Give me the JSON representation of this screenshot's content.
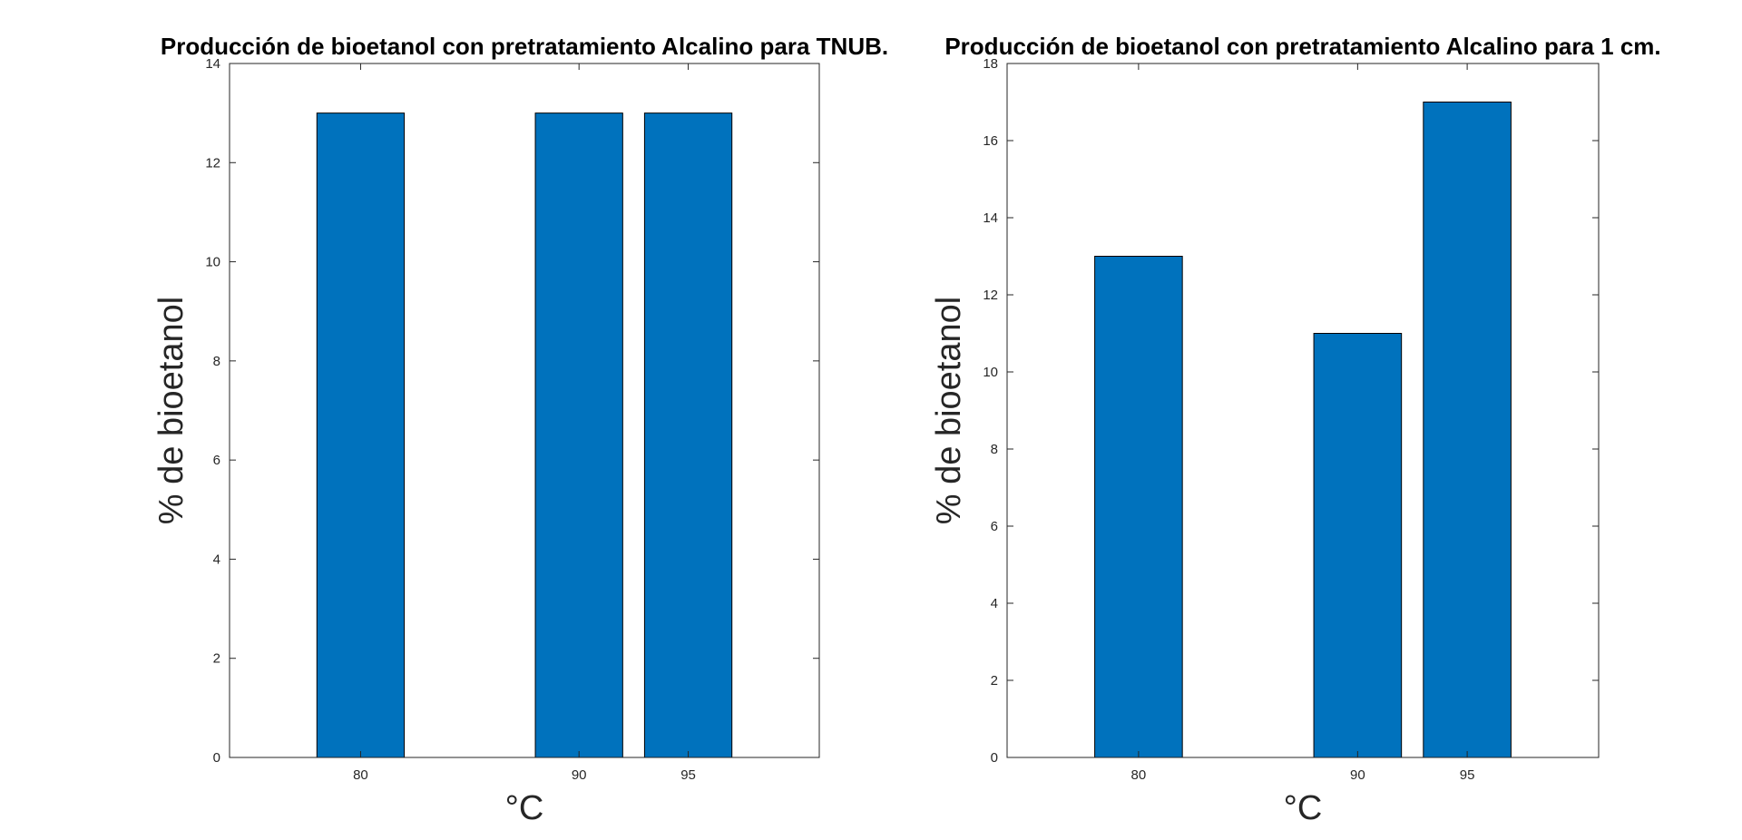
{
  "colors": {
    "bar_fill": "#0072BD",
    "bar_edge": "#000000",
    "axis": "#262626",
    "background": "#ffffff"
  },
  "chart_data": [
    {
      "type": "bar",
      "title": "Producción de bioetanol con pretratamiento Alcalino para TNUB.",
      "xlabel": "°C",
      "ylabel": "% de bioetanol",
      "x": [
        80,
        90,
        95
      ],
      "categories": [
        "80",
        "90",
        "95"
      ],
      "values": [
        13,
        13,
        13
      ],
      "xlim": [
        74,
        101
      ],
      "ylim": [
        0,
        14
      ],
      "yticks": [
        0,
        2,
        4,
        6,
        8,
        10,
        12,
        14
      ],
      "bar_width": 4,
      "grid": false,
      "legend": "none"
    },
    {
      "type": "bar",
      "title": "Producción de bioetanol con pretratamiento Alcalino para 1 cm.",
      "xlabel": "°C",
      "ylabel": "% de bioetanol",
      "x": [
        80,
        90,
        95
      ],
      "categories": [
        "80",
        "90",
        "95"
      ],
      "values": [
        13,
        11,
        17
      ],
      "xlim": [
        74,
        101
      ],
      "ylim": [
        0,
        18
      ],
      "yticks": [
        0,
        2,
        4,
        6,
        8,
        10,
        12,
        14,
        16,
        18
      ],
      "bar_width": 4,
      "grid": false,
      "legend": "none"
    }
  ]
}
